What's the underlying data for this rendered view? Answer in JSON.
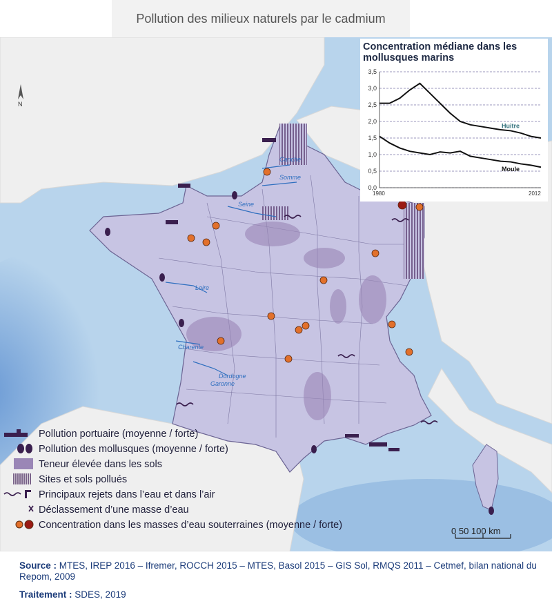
{
  "title": "Pollution des milieux naturels par le cadmium",
  "map": {
    "north_label": "N",
    "rivers": [
      "Canche",
      "Somme",
      "Seine",
      "Loire",
      "Charente",
      "Dordogne",
      "Garonne"
    ]
  },
  "inset_chart": {
    "title_line1": "Concentration médiane dans les",
    "title_line2": "mollusques marins"
  },
  "chart_data": {
    "type": "line",
    "title": "Concentration médiane dans les mollusques marins",
    "x": [
      1980,
      1982,
      1984,
      1986,
      1988,
      1990,
      1992,
      1994,
      1996,
      1998,
      2000,
      2002,
      2004,
      2006,
      2008,
      2010,
      2012
    ],
    "xlim": [
      1980,
      2012
    ],
    "ylim": [
      0,
      3.5
    ],
    "yticks": [
      "0,0",
      "0,5",
      "1,0",
      "1,5",
      "2,0",
      "2,5",
      "3,0",
      "3,5"
    ],
    "xtick_labels": [
      "1980",
      "2012"
    ],
    "series": [
      {
        "name": "Huitre",
        "values": [
          2.55,
          2.55,
          2.7,
          2.95,
          3.15,
          2.85,
          2.55,
          2.25,
          2.0,
          1.9,
          1.85,
          1.8,
          1.75,
          1.72,
          1.65,
          1.55,
          1.5
        ]
      },
      {
        "name": "Moule",
        "values": [
          1.55,
          1.35,
          1.2,
          1.1,
          1.05,
          1.0,
          1.08,
          1.05,
          1.1,
          0.95,
          0.9,
          0.85,
          0.8,
          0.78,
          0.72,
          0.68,
          0.62
        ]
      }
    ],
    "grid": true
  },
  "legend": [
    {
      "label": "Pollution portuaire (moyenne / forte)",
      "icon": "ship-icon"
    },
    {
      "label": "Pollution des mollusques (moyenne / forte)",
      "icon": "shell-icon"
    },
    {
      "label": "Teneur élevée dans les sols",
      "icon": "soil-area-icon"
    },
    {
      "label": "Sites et sols pollués",
      "icon": "hatched-area-icon"
    },
    {
      "label": "Principaux rejets dans l’eau et dans l’air",
      "icon": "emission-icon"
    },
    {
      "label": "Déclassement d’une masse d’eau",
      "icon": "x-cross-icon"
    },
    {
      "label": "Concentration dans les masses d’eau souterraines (moyenne / forte)",
      "icon": "dot-icon"
    }
  ],
  "scale": {
    "label": "0    50 100 km"
  },
  "source": {
    "label": "Source :",
    "text": "MTES, IREP 2016 – Ifremer, ROCCH 2015 – MTES, Basol 2015 – GIS Sol, RMQS 2011 – Cetmef, bilan national du Repom, 2009"
  },
  "treatment": {
    "label": "Traitement :",
    "text": "SDES, 2019"
  },
  "colors": {
    "sea": "#b8d4ec",
    "deep_sea": "#6f9fd6",
    "land_neighbors": "#efefef",
    "france": "#c7c4e3",
    "soil": "#9a86b6",
    "dot_medium": "#e2702b",
    "dot_strong": "#9a1a14",
    "icons": "#3a1f4e"
  }
}
